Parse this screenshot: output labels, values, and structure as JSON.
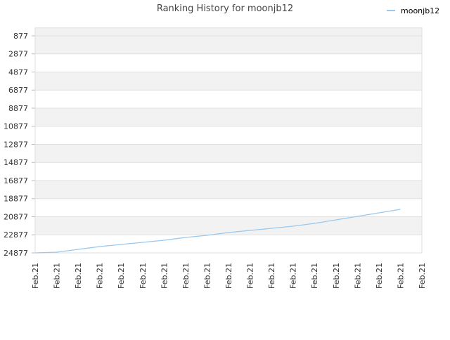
{
  "chart_data": {
    "type": "line",
    "title": "Ranking History for moonjb12",
    "categories": [
      "Feb.21",
      "Feb.21",
      "Feb.21",
      "Feb.21",
      "Feb.21",
      "Feb.21",
      "Feb.21",
      "Feb.21",
      "Feb.21",
      "Feb.21",
      "Feb.21",
      "Feb.21",
      "Feb.21",
      "Feb.21",
      "Feb.21",
      "Feb.21",
      "Feb.21",
      "Feb.21",
      "Feb.21"
    ],
    "series": [
      {
        "name": "moonjb12",
        "color": "#99c8ee",
        "values": [
          24877,
          24800,
          24490,
          24180,
          23945,
          23710,
          23480,
          23170,
          22935,
          22625,
          22390,
          22160,
          21925,
          21615,
          21230,
          20840,
          20450,
          20060,
          null
        ]
      }
    ],
    "ylim": [
      0,
      24877
    ],
    "y_inverted": true,
    "yticks": [
      877,
      2877,
      4877,
      6877,
      8877,
      10877,
      12877,
      14877,
      16877,
      18877,
      20877,
      22877,
      24877
    ],
    "grid": true,
    "legend": "top-right"
  }
}
